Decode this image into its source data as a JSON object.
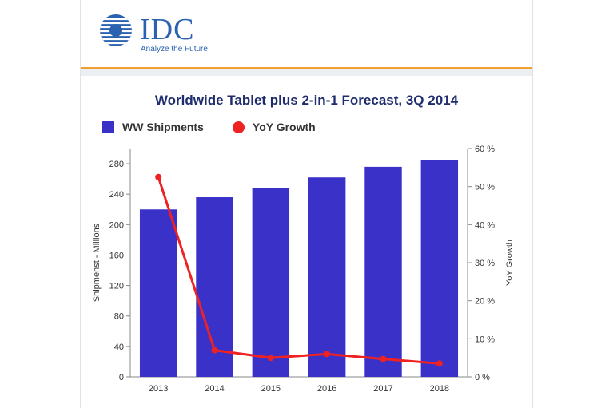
{
  "logo": {
    "wordmark": "IDC",
    "tagline": "Analyze the Future"
  },
  "colors": {
    "bar": "#3a32c8",
    "line": "#ee2222",
    "brand": "#2b62b0",
    "title": "#1f2d6e",
    "rule": "#f0a030"
  },
  "chart_data": {
    "type": "bar",
    "title": "Worldwide Tablet plus 2-in-1 Forecast, 3Q 2014",
    "categories": [
      "2013",
      "2014",
      "2015",
      "2016",
      "2017",
      "2018"
    ],
    "series": [
      {
        "name": "WW Shipments",
        "type": "bar",
        "axis": "left",
        "values": [
          220,
          236,
          248,
          262,
          276,
          285
        ]
      },
      {
        "name": "YoY Growth",
        "type": "line",
        "axis": "right",
        "values": [
          52.5,
          7,
          5,
          6,
          4.7,
          3.5
        ]
      }
    ],
    "ylabel": "Shipmenst - Millions",
    "ylim": [
      0,
      300
    ],
    "yticks": [
      0,
      40,
      80,
      120,
      160,
      200,
      240,
      280
    ],
    "y2label": "YoY Growth",
    "y2lim": [
      0,
      60
    ],
    "y2ticks": [
      "0 %",
      "10 %",
      "20 %",
      "30 %",
      "40 %",
      "50 %",
      "60 %"
    ],
    "legend_position": "top",
    "grid": false
  }
}
